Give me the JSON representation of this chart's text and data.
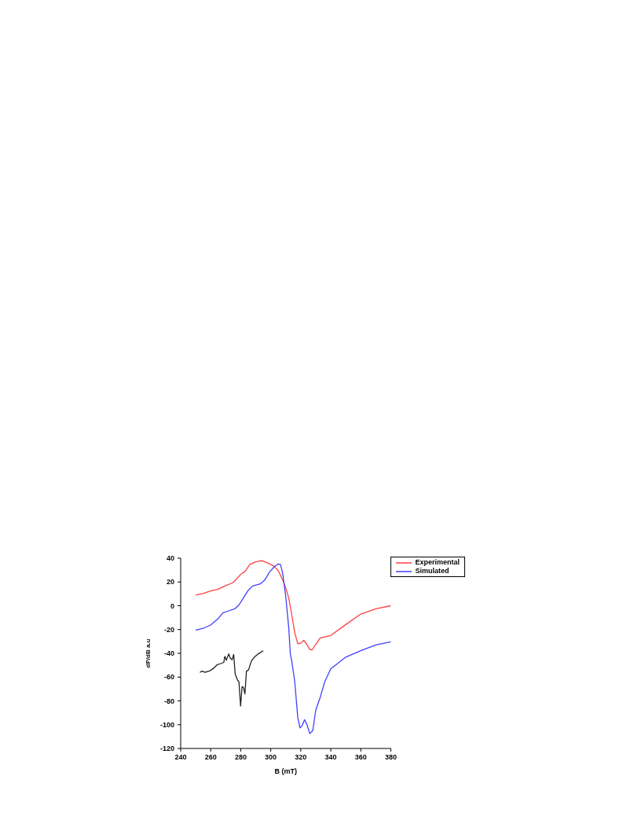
{
  "chart_data": {
    "type": "line",
    "xlabel": "B (mT)",
    "ylabel": "dP/dB a.u",
    "xlim": [
      240,
      380
    ],
    "xticks": [
      240,
      260,
      280,
      300,
      320,
      340,
      360,
      380
    ],
    "ylim": [
      -120,
      40
    ],
    "yticks": [
      -120,
      -100,
      -80,
      -60,
      -40,
      -20,
      0,
      20,
      40
    ],
    "grid": false,
    "legend": "top right",
    "marker": "none",
    "line_style": "solid",
    "series": [
      {
        "name": "Experimental",
        "color": "#ff4040",
        "x": [
          250,
          255,
          260,
          265,
          270,
          275,
          280,
          283,
          286,
          290,
          294,
          298,
          302,
          305,
          308,
          310,
          312,
          314,
          316,
          318,
          320,
          322,
          324,
          326,
          327.5,
          330,
          333,
          340,
          350,
          360,
          370,
          380
        ],
        "values": [
          9,
          10.4,
          12.5,
          14,
          17,
          19.5,
          26.4,
          29,
          34.6,
          37,
          38,
          36,
          33.5,
          29.6,
          21.6,
          15,
          6.5,
          -7.6,
          -22.7,
          -32,
          -31.4,
          -29,
          -32.4,
          -36.8,
          -37.2,
          -32.4,
          -27,
          -25,
          -15.8,
          -7,
          -2.6,
          0
        ]
      },
      {
        "name": "Simulated",
        "color": "#4040ff",
        "x": [
          250,
          255,
          260,
          265,
          268,
          272,
          276,
          279,
          282,
          285,
          288,
          293,
          296,
          299,
          302,
          305,
          306.5,
          308,
          310,
          312,
          313,
          314,
          316,
          318,
          319.5,
          321,
          322.5,
          324,
          326,
          328,
          330,
          333,
          336,
          340,
          350,
          360,
          370,
          380
        ],
        "values": [
          -20.5,
          -19,
          -16.2,
          -10.8,
          -6,
          -4.3,
          -2.6,
          1,
          7,
          13,
          16.6,
          18.4,
          21.6,
          28,
          32.4,
          35.2,
          34.6,
          27,
          7.6,
          -18.4,
          -40,
          -46.5,
          -63.8,
          -94,
          -102.7,
          -100.6,
          -95.8,
          -99.5,
          -107.5,
          -105,
          -87.6,
          -76.8,
          -63.8,
          -53,
          -43.2,
          -37.8,
          -33,
          -30.3
        ]
      },
      {
        "color": "#202020",
        "x": [
          252.8,
          254.2,
          256.2,
          258.9,
          261.5,
          264.2,
          266.8,
          268.7,
          269.4,
          270.4,
          272,
          273,
          274.3,
          275.3,
          276.3,
          277.9,
          278.8,
          279.9,
          280.9,
          281.9,
          282.8,
          283.8,
          285.2,
          287.1,
          289.1,
          291.8,
          295
        ],
        "values": [
          -56,
          -55,
          -56,
          -55,
          -53,
          -49.7,
          -48.6,
          -47.6,
          -42.6,
          -45.8,
          -40.4,
          -44,
          -45.4,
          -41,
          -57.3,
          -62.7,
          -63.8,
          -84.3,
          -68,
          -69,
          -74.2,
          -55.1,
          -54,
          -46.5,
          -43.2,
          -40.4,
          -37.8
        ]
      }
    ]
  }
}
